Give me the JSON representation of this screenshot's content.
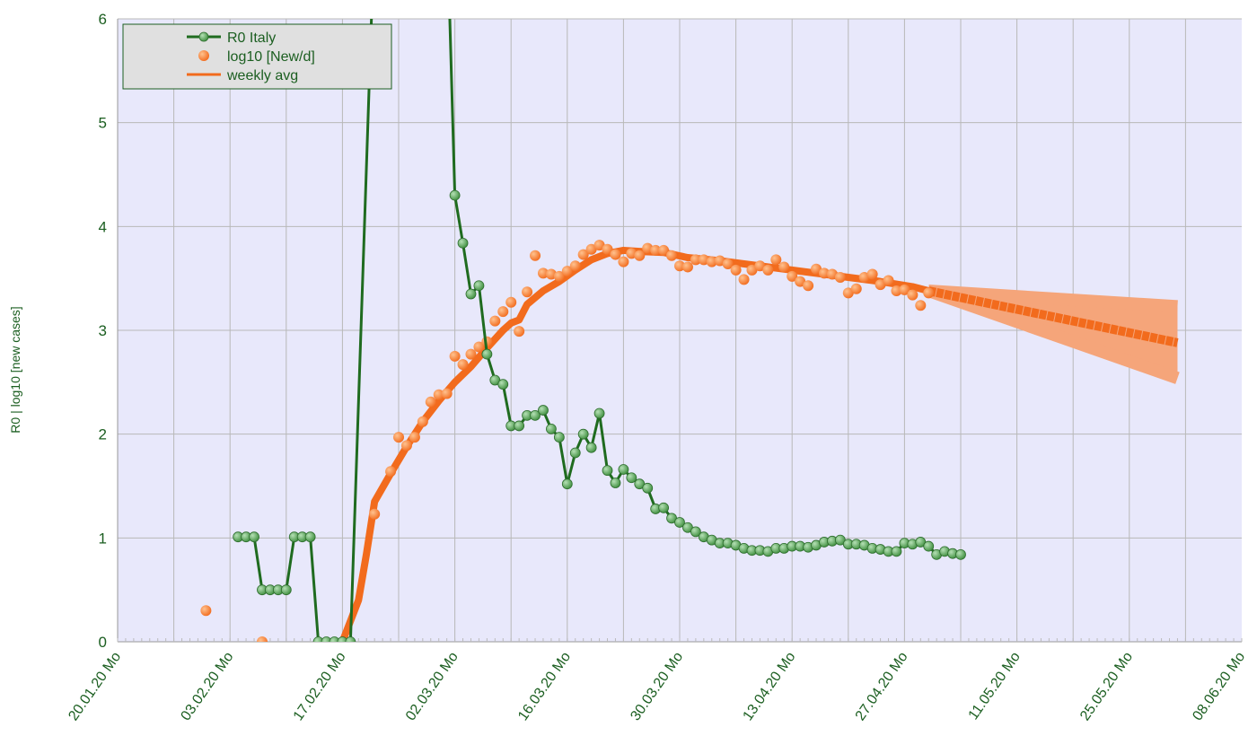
{
  "chart_data": {
    "type": "line",
    "title": "",
    "ylabel": "R0 | log10 [new cases]",
    "xlabel": "",
    "ylim": [
      0,
      6
    ],
    "xlim": [
      "2020-01-20",
      "2020-06-08"
    ],
    "yticks": [
      "0",
      "1",
      "2",
      "3",
      "4",
      "5",
      "6"
    ],
    "xticks": [
      "20.01.20 Mo",
      "03.02.20 Mo",
      "17.02.20 Mo",
      "02.03.20 Mo",
      "16.03.20 Mo",
      "30.03.20 Mo",
      "13.04.20 Mo",
      "27.04.20 Mo",
      "11.05.20 Mo",
      "25.05.20 Mo",
      "08.06.20 Mo"
    ],
    "grid": true,
    "legend_position": "top-left",
    "colors": {
      "plot_background": "#e8e8fb",
      "grid": "#b8b8b8",
      "r0": "#1f6b1f",
      "r0_marker": "#3e8e3e",
      "log_cases": "#f26b1d",
      "weekly_avg": "#f26b1d",
      "projection_band": "#f5a57a",
      "legend_background": "#e0e0e0",
      "legend_border": "#1b5e20",
      "text": "#1b5e20"
    },
    "legend": [
      {
        "key": "r0",
        "label": "R0    Italy",
        "style": "line-marker"
      },
      {
        "key": "log_cases",
        "label": "log10 [New/d]",
        "style": "marker"
      },
      {
        "key": "weekly_avg",
        "label": "weekly avg",
        "style": "line"
      }
    ],
    "series": [
      {
        "key": "r0",
        "name": "R0    Italy",
        "kind": "line-marker",
        "points": [
          [
            "2020-02-04",
            1.01
          ],
          [
            "2020-02-05",
            1.01
          ],
          [
            "2020-02-06",
            1.01
          ],
          [
            "2020-02-07",
            0.5
          ],
          [
            "2020-02-08",
            0.5
          ],
          [
            "2020-02-09",
            0.5
          ],
          [
            "2020-02-10",
            0.5
          ],
          [
            "2020-02-11",
            1.01
          ],
          [
            "2020-02-12",
            1.01
          ],
          [
            "2020-02-13",
            1.01
          ],
          [
            "2020-02-14",
            0
          ],
          [
            "2020-02-15",
            0
          ],
          [
            "2020-02-16",
            0
          ],
          [
            "2020-02-17",
            0
          ],
          [
            "2020-02-18",
            0
          ],
          [
            "2020-02-21",
            6.9
          ],
          [
            "2020-03-01",
            7.0
          ],
          [
            "2020-03-02",
            4.3
          ],
          [
            "2020-03-03",
            3.84
          ],
          [
            "2020-03-04",
            3.35
          ],
          [
            "2020-03-05",
            3.43
          ],
          [
            "2020-03-06",
            2.77
          ],
          [
            "2020-03-07",
            2.52
          ],
          [
            "2020-03-08",
            2.48
          ],
          [
            "2020-03-09",
            2.08
          ],
          [
            "2020-03-10",
            2.08
          ],
          [
            "2020-03-11",
            2.18
          ],
          [
            "2020-03-12",
            2.18
          ],
          [
            "2020-03-13",
            2.23
          ],
          [
            "2020-03-14",
            2.05
          ],
          [
            "2020-03-15",
            1.97
          ],
          [
            "2020-03-16",
            1.52
          ],
          [
            "2020-03-17",
            1.82
          ],
          [
            "2020-03-18",
            2.0
          ],
          [
            "2020-03-19",
            1.87
          ],
          [
            "2020-03-20",
            2.2
          ],
          [
            "2020-03-21",
            1.65
          ],
          [
            "2020-03-22",
            1.53
          ],
          [
            "2020-03-23",
            1.66
          ],
          [
            "2020-03-24",
            1.58
          ],
          [
            "2020-03-25",
            1.52
          ],
          [
            "2020-03-26",
            1.48
          ],
          [
            "2020-03-27",
            1.28
          ],
          [
            "2020-03-28",
            1.29
          ],
          [
            "2020-03-29",
            1.19
          ],
          [
            "2020-03-30",
            1.15
          ],
          [
            "2020-03-31",
            1.1
          ],
          [
            "2020-04-01",
            1.06
          ],
          [
            "2020-04-02",
            1.01
          ],
          [
            "2020-04-03",
            0.98
          ],
          [
            "2020-04-04",
            0.95
          ],
          [
            "2020-04-05",
            0.95
          ],
          [
            "2020-04-06",
            0.93
          ],
          [
            "2020-04-07",
            0.9
          ],
          [
            "2020-04-08",
            0.88
          ],
          [
            "2020-04-09",
            0.88
          ],
          [
            "2020-04-10",
            0.87
          ],
          [
            "2020-04-11",
            0.9
          ],
          [
            "2020-04-12",
            0.9
          ],
          [
            "2020-04-13",
            0.92
          ],
          [
            "2020-04-14",
            0.92
          ],
          [
            "2020-04-15",
            0.91
          ],
          [
            "2020-04-16",
            0.93
          ],
          [
            "2020-04-17",
            0.96
          ],
          [
            "2020-04-18",
            0.97
          ],
          [
            "2020-04-19",
            0.98
          ],
          [
            "2020-04-20",
            0.94
          ],
          [
            "2020-04-21",
            0.94
          ],
          [
            "2020-04-22",
            0.93
          ],
          [
            "2020-04-23",
            0.9
          ],
          [
            "2020-04-24",
            0.89
          ],
          [
            "2020-04-25",
            0.87
          ],
          [
            "2020-04-26",
            0.87
          ],
          [
            "2020-04-27",
            0.95
          ],
          [
            "2020-04-28",
            0.94
          ],
          [
            "2020-04-29",
            0.96
          ],
          [
            "2020-04-30",
            0.92
          ],
          [
            "2020-05-01",
            0.84
          ],
          [
            "2020-05-02",
            0.87
          ],
          [
            "2020-05-03",
            0.85
          ],
          [
            "2020-05-04",
            0.84
          ]
        ]
      },
      {
        "key": "log_cases",
        "name": "log10 [New/d]",
        "kind": "scatter",
        "points": [
          [
            "2020-01-31",
            0.3
          ],
          [
            "2020-02-07",
            0.0
          ],
          [
            "2020-02-21",
            1.23
          ],
          [
            "2020-02-23",
            1.64
          ],
          [
            "2020-02-24",
            1.97
          ],
          [
            "2020-02-25",
            1.89
          ],
          [
            "2020-02-26",
            1.97
          ],
          [
            "2020-02-27",
            2.12
          ],
          [
            "2020-02-28",
            2.31
          ],
          [
            "2020-02-29",
            2.38
          ],
          [
            "2020-03-01",
            2.39
          ],
          [
            "2020-03-02",
            2.75
          ],
          [
            "2020-03-03",
            2.67
          ],
          [
            "2020-03-04",
            2.77
          ],
          [
            "2020-03-05",
            2.84
          ],
          [
            "2020-03-06",
            2.89
          ],
          [
            "2020-03-07",
            3.09
          ],
          [
            "2020-03-08",
            3.18
          ],
          [
            "2020-03-09",
            3.27
          ],
          [
            "2020-03-10",
            2.99
          ],
          [
            "2020-03-11",
            3.37
          ],
          [
            "2020-03-12",
            3.72
          ],
          [
            "2020-03-13",
            3.55
          ],
          [
            "2020-03-14",
            3.54
          ],
          [
            "2020-03-15",
            3.52
          ],
          [
            "2020-03-16",
            3.57
          ],
          [
            "2020-03-17",
            3.62
          ],
          [
            "2020-03-18",
            3.73
          ],
          [
            "2020-03-19",
            3.78
          ],
          [
            "2020-03-20",
            3.82
          ],
          [
            "2020-03-21",
            3.78
          ],
          [
            "2020-03-22",
            3.73
          ],
          [
            "2020-03-23",
            3.66
          ],
          [
            "2020-03-24",
            3.74
          ],
          [
            "2020-03-25",
            3.72
          ],
          [
            "2020-03-26",
            3.79
          ],
          [
            "2020-03-27",
            3.77
          ],
          [
            "2020-03-28",
            3.77
          ],
          [
            "2020-03-29",
            3.72
          ],
          [
            "2020-03-30",
            3.62
          ],
          [
            "2020-03-31",
            3.61
          ],
          [
            "2020-04-01",
            3.68
          ],
          [
            "2020-04-02",
            3.68
          ],
          [
            "2020-04-03",
            3.66
          ],
          [
            "2020-04-04",
            3.67
          ],
          [
            "2020-04-05",
            3.64
          ],
          [
            "2020-04-06",
            3.58
          ],
          [
            "2020-04-07",
            3.49
          ],
          [
            "2020-04-08",
            3.58
          ],
          [
            "2020-04-09",
            3.62
          ],
          [
            "2020-04-10",
            3.58
          ],
          [
            "2020-04-11",
            3.68
          ],
          [
            "2020-04-12",
            3.61
          ],
          [
            "2020-04-13",
            3.52
          ],
          [
            "2020-04-14",
            3.47
          ],
          [
            "2020-04-15",
            3.43
          ],
          [
            "2020-04-16",
            3.59
          ],
          [
            "2020-04-17",
            3.55
          ],
          [
            "2020-04-18",
            3.54
          ],
          [
            "2020-04-19",
            3.51
          ],
          [
            "2020-04-20",
            3.36
          ],
          [
            "2020-04-21",
            3.4
          ],
          [
            "2020-04-22",
            3.51
          ],
          [
            "2020-04-23",
            3.54
          ],
          [
            "2020-04-24",
            3.44
          ],
          [
            "2020-04-25",
            3.48
          ],
          [
            "2020-04-26",
            3.38
          ],
          [
            "2020-04-27",
            3.39
          ],
          [
            "2020-04-28",
            3.34
          ],
          [
            "2020-04-29",
            3.24
          ],
          [
            "2020-04-30",
            3.36
          ]
        ]
      },
      {
        "key": "weekly_avg",
        "name": "weekly avg",
        "kind": "line",
        "points": [
          [
            "2020-02-17",
            0.0
          ],
          [
            "2020-02-19",
            0.4
          ],
          [
            "2020-02-20",
            0.85
          ],
          [
            "2020-02-21",
            1.35
          ],
          [
            "2020-02-23",
            1.62
          ],
          [
            "2020-02-25",
            1.88
          ],
          [
            "2020-02-27",
            2.12
          ],
          [
            "2020-02-29",
            2.32
          ],
          [
            "2020-03-02",
            2.5
          ],
          [
            "2020-03-04",
            2.65
          ],
          [
            "2020-03-06",
            2.83
          ],
          [
            "2020-03-08",
            3.0
          ],
          [
            "2020-03-09",
            3.07
          ],
          [
            "2020-03-10",
            3.1
          ],
          [
            "2020-03-11",
            3.25
          ],
          [
            "2020-03-13",
            3.38
          ],
          [
            "2020-03-15",
            3.47
          ],
          [
            "2020-03-17",
            3.58
          ],
          [
            "2020-03-19",
            3.68
          ],
          [
            "2020-03-21",
            3.74
          ],
          [
            "2020-03-23",
            3.77
          ],
          [
            "2020-03-25",
            3.76
          ],
          [
            "2020-03-28",
            3.75
          ],
          [
            "2020-03-31",
            3.7
          ],
          [
            "2020-04-04",
            3.67
          ],
          [
            "2020-04-08",
            3.63
          ],
          [
            "2020-04-12",
            3.59
          ],
          [
            "2020-04-16",
            3.55
          ],
          [
            "2020-04-20",
            3.51
          ],
          [
            "2020-04-24",
            3.47
          ],
          [
            "2020-04-28",
            3.42
          ],
          [
            "2020-04-30",
            3.38
          ]
        ]
      },
      {
        "key": "projection",
        "kind": "line",
        "points": [
          [
            "2020-04-30",
            3.38
          ],
          [
            "2020-05-31",
            2.88
          ]
        ]
      },
      {
        "key": "projection_upper",
        "kind": "band-edge",
        "points": [
          [
            "2020-04-30",
            3.38
          ],
          [
            "2020-05-31",
            3.23
          ]
        ]
      },
      {
        "key": "projection_lower",
        "kind": "band-edge",
        "points": [
          [
            "2020-04-30",
            3.38
          ],
          [
            "2020-05-31",
            2.54
          ]
        ]
      }
    ]
  }
}
